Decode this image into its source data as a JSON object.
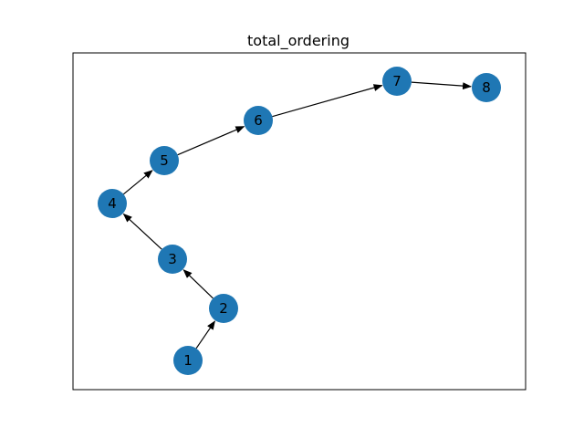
{
  "title": "total_ordering",
  "colors": {
    "node": "#1f77b4",
    "edge": "#000000",
    "frame": "#000000",
    "background": "#ffffff"
  },
  "nodes": [
    {
      "id": "1",
      "label": "1"
    },
    {
      "id": "2",
      "label": "2"
    },
    {
      "id": "3",
      "label": "3"
    },
    {
      "id": "4",
      "label": "4"
    },
    {
      "id": "5",
      "label": "5"
    },
    {
      "id": "6",
      "label": "6"
    },
    {
      "id": "7",
      "label": "7"
    },
    {
      "id": "8",
      "label": "8"
    }
  ],
  "edges": [
    {
      "from": "1",
      "to": "2"
    },
    {
      "from": "2",
      "to": "3"
    },
    {
      "from": "3",
      "to": "4"
    },
    {
      "from": "4",
      "to": "5"
    },
    {
      "from": "5",
      "to": "6"
    },
    {
      "from": "6",
      "to": "7"
    },
    {
      "from": "7",
      "to": "8"
    }
  ]
}
